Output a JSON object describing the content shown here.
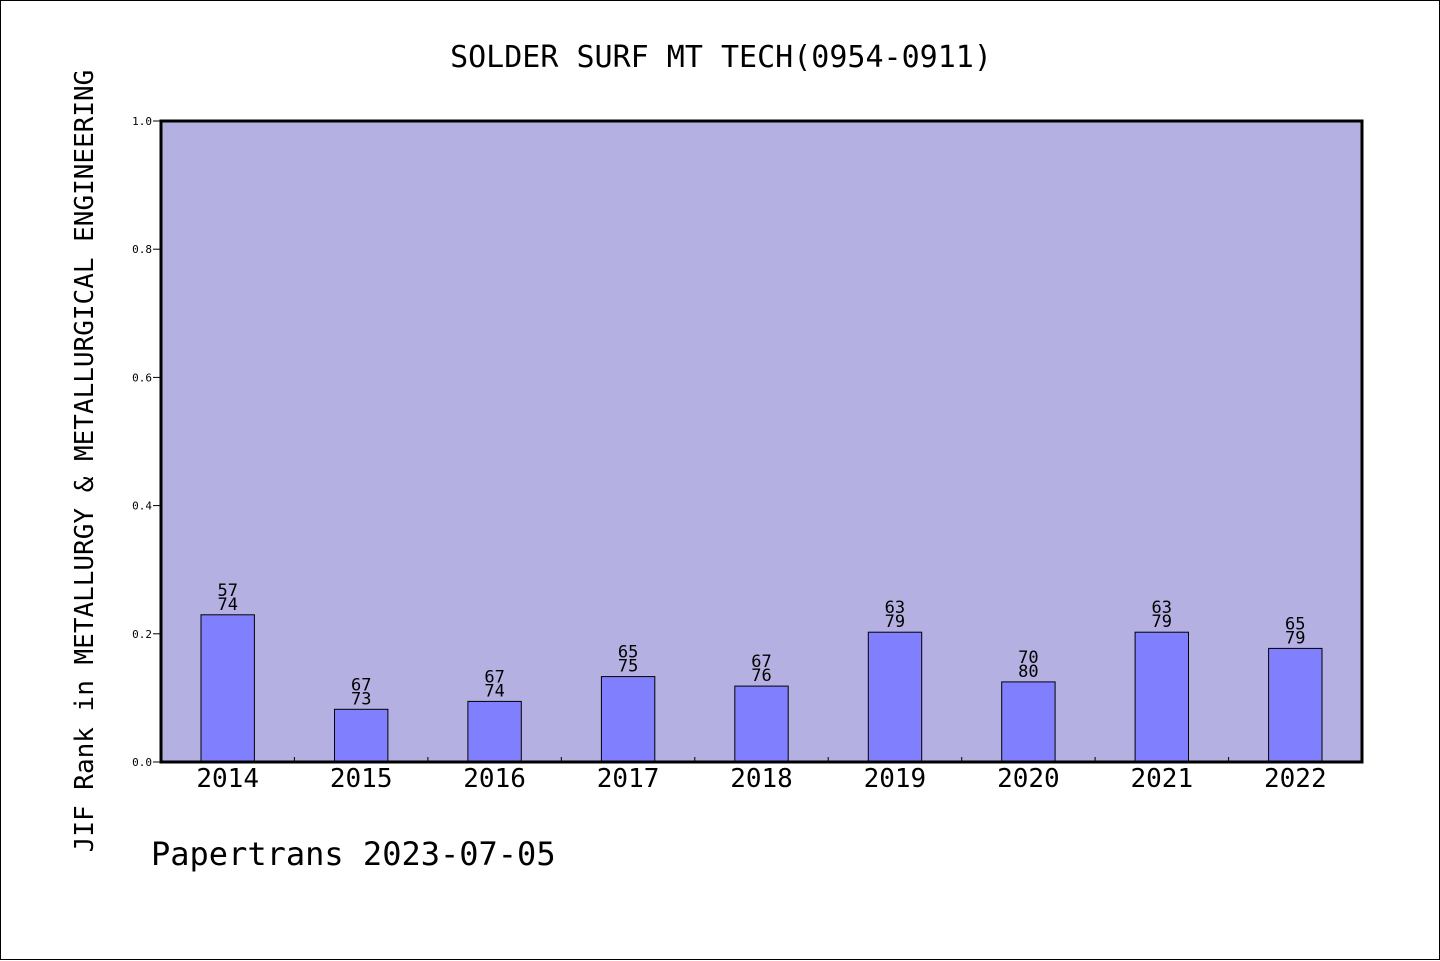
{
  "chart_data": {
    "type": "bar",
    "title": "SOLDER SURF MT TECH(0954-0911)",
    "xlabel": "",
    "ylabel": "JIF Rank in METALLURGY & METALLURGICAL ENGINEERING",
    "categories": [
      "2014",
      "2015",
      "2016",
      "2017",
      "2018",
      "2019",
      "2020",
      "2021",
      "2022"
    ],
    "rank": [
      57,
      67,
      67,
      65,
      67,
      63,
      70,
      63,
      65
    ],
    "total": [
      74,
      73,
      74,
      75,
      76,
      79,
      80,
      79,
      79
    ],
    "values": [
      0.2297,
      0.0822,
      0.0946,
      0.1333,
      0.1184,
      0.2025,
      0.125,
      0.2025,
      0.1772
    ],
    "ylim": [
      0,
      1.0
    ],
    "yticks": [
      "0.0",
      "0.2",
      "0.4",
      "0.6",
      "0.8",
      "1.0"
    ],
    "grid": false,
    "legend": "none",
    "colors": {
      "plot_background": "#b5b0e2",
      "bar_fill": "#8080ff",
      "bar_stroke": "#000000",
      "axis": "#000000"
    }
  },
  "footer": {
    "credit": "Papertrans 2023-07-05"
  }
}
